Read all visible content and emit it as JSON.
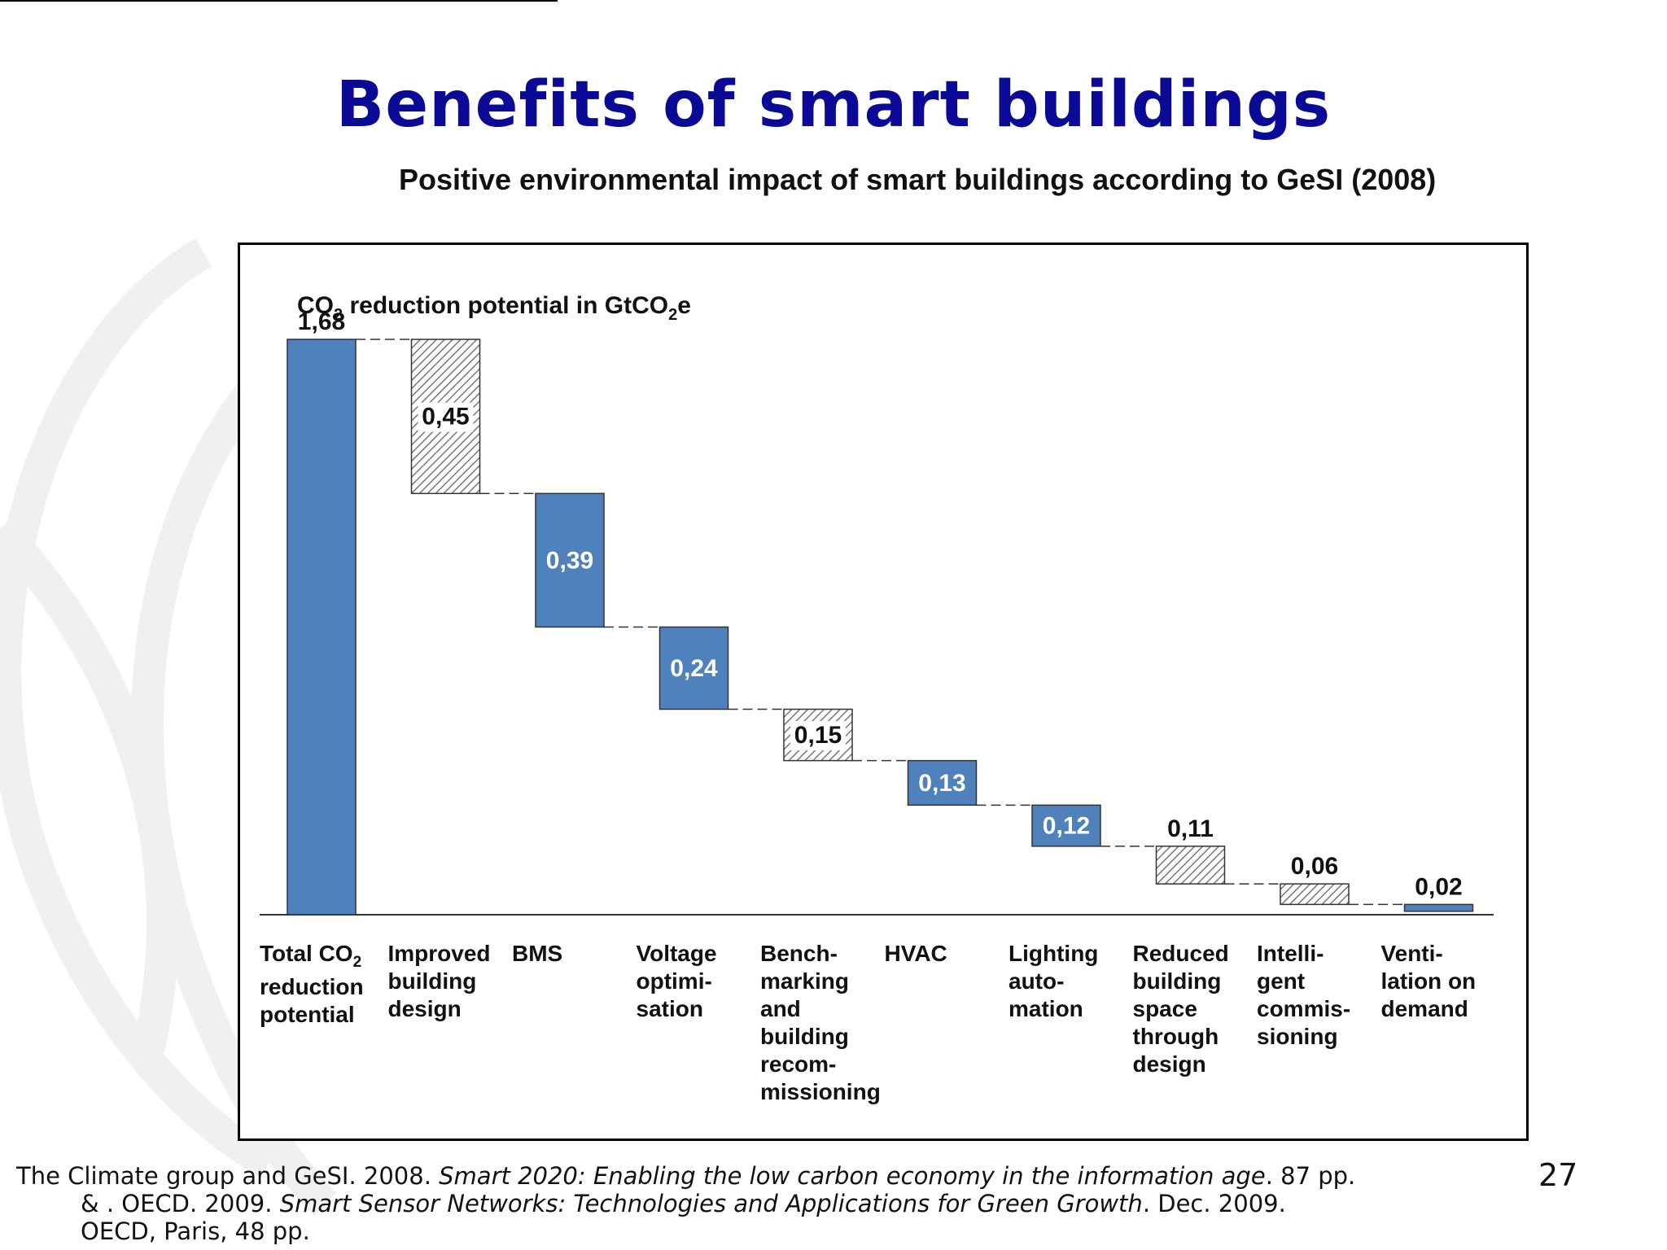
{
  "slide": {
    "title": "Benefits of smart buildings",
    "subtitle": "Positive environmental impact of smart buildings according to GeSI (2008)",
    "page_number": "27",
    "footer": {
      "line1_a": "The Climate group and GeSI. 2008. ",
      "line1_b": "Smart 2020: Enabling the low carbon economy in the information age",
      "line1_c": ". 87 pp.",
      "line2_a": "& . OECD. 2009. ",
      "line2_b": "Smart Sensor Networks: Technologies and Applications for Green Growth",
      "line2_c": ". Dec. 2009.",
      "line3": "OECD, Paris, 48 pp."
    }
  },
  "colors": {
    "title": "#0a0a96",
    "bar_solid": "#4f81bd",
    "bar_hatch": "#8a8a8a",
    "watermark": "#f0f0f0"
  },
  "chart_data": {
    "type": "bar",
    "variant": "waterfall",
    "ylabel": {
      "prefix": "CO",
      "sub1": "2",
      "middle": " reduction potential in GtCO",
      "sub2": "2",
      "suffix": "e"
    },
    "total": {
      "value": 1.68,
      "label": "1,68",
      "category_lines": [
        "Total CO",
        "reduction",
        "potential"
      ],
      "category_sub": "2"
    },
    "steps": [
      {
        "value": 0.45,
        "label": "0,45",
        "style": "hatched",
        "label_pos": "inside",
        "category_lines": [
          "Improved",
          "building",
          "design"
        ]
      },
      {
        "value": 0.39,
        "label": "0,39",
        "style": "solid",
        "label_pos": "inside",
        "category_lines": [
          "BMS"
        ]
      },
      {
        "value": 0.24,
        "label": "0,24",
        "style": "solid",
        "label_pos": "inside",
        "category_lines": [
          "Voltage",
          "optimi-",
          "sation"
        ]
      },
      {
        "value": 0.15,
        "label": "0,15",
        "style": "hatched",
        "label_pos": "inside",
        "category_lines": [
          "Bench-",
          "marking",
          "and",
          "building",
          "recom-",
          "missioning"
        ]
      },
      {
        "value": 0.13,
        "label": "0,13",
        "style": "solid",
        "label_pos": "inside",
        "category_lines": [
          "HVAC"
        ]
      },
      {
        "value": 0.12,
        "label": "0,12",
        "style": "solid",
        "label_pos": "inside",
        "category_lines": [
          "Lighting",
          "auto-",
          "mation"
        ]
      },
      {
        "value": 0.11,
        "label": "0,11",
        "style": "hatched",
        "label_pos": "above",
        "category_lines": [
          "Reduced",
          "building",
          "space",
          "through",
          "design"
        ]
      },
      {
        "value": 0.06,
        "label": "0,06",
        "style": "hatched",
        "label_pos": "above",
        "category_lines": [
          "Intelli-",
          "gent",
          "commis-",
          "sioning"
        ]
      },
      {
        "value": 0.02,
        "label": "0,02",
        "style": "solid",
        "label_pos": "above",
        "category_lines": [
          "Venti-",
          "lation on",
          "demand"
        ]
      }
    ],
    "ylim": [
      0,
      1.68
    ],
    "legend": "none",
    "grid": false
  }
}
